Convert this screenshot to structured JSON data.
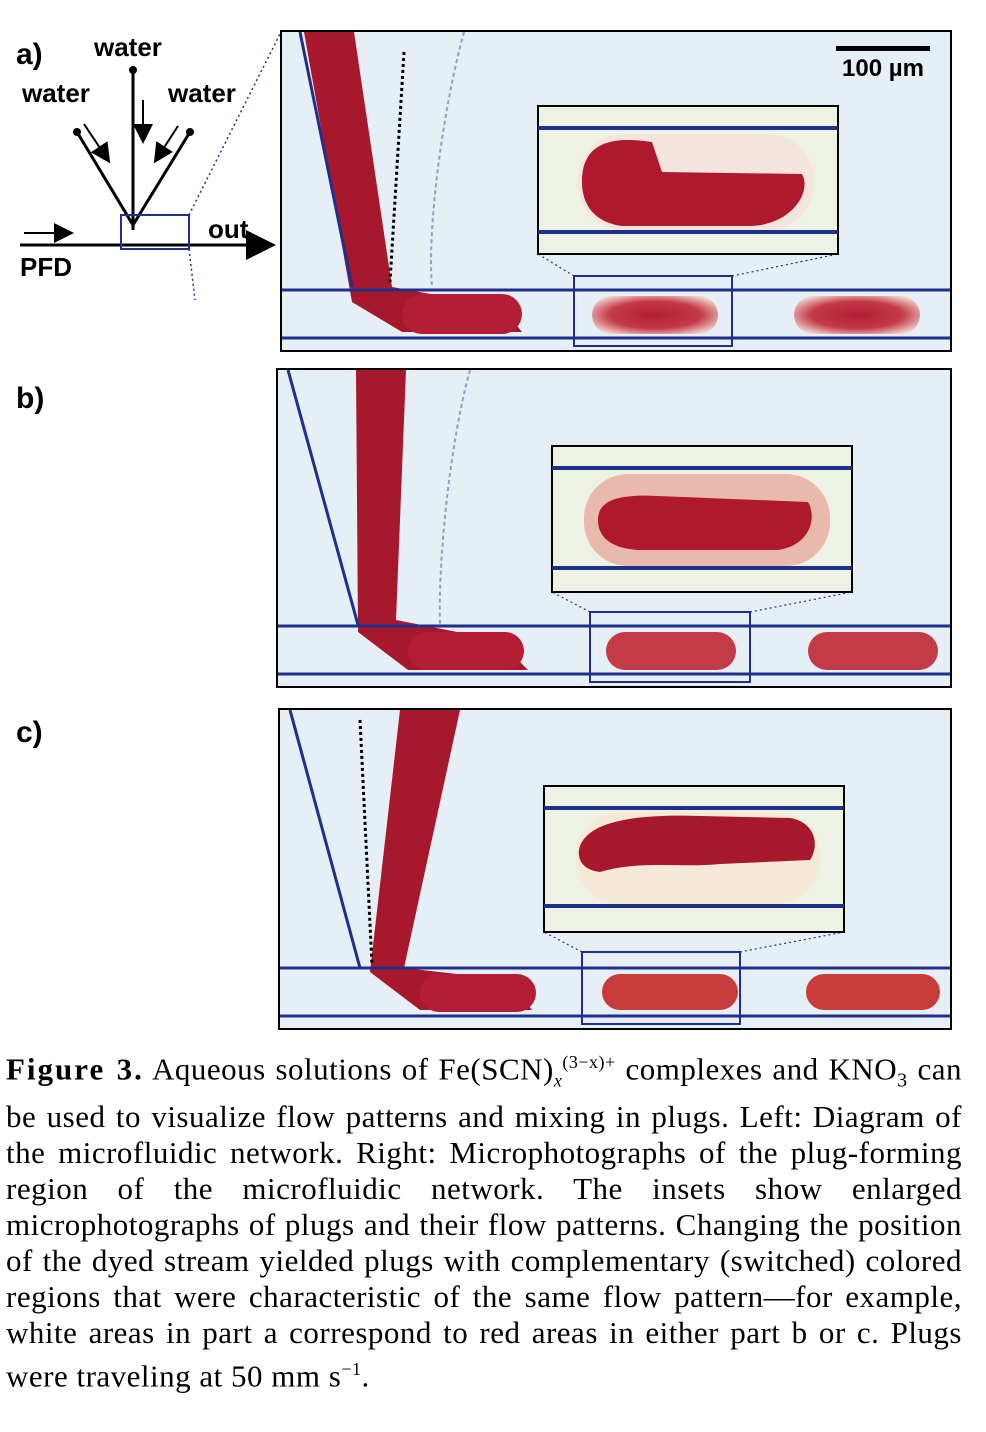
{
  "diagram": {
    "panel_a_label": "a)",
    "panel_b_label": "b)",
    "panel_c_label": "c)",
    "water_top": "water",
    "water_left": "water",
    "water_right": "water",
    "out_label": "out",
    "pfd_label": "PFD"
  },
  "scale_bar": {
    "label": "100 µm"
  },
  "caption": {
    "figure_label": "Figure 3.",
    "text_1": "Aqueous solutions of Fe(SCN)",
    "subscript_x": "x",
    "superscript_charge": "(3−x)+",
    "text_2": "complexes and KNO",
    "subscript_3": "3",
    "text_3": "can be used to visualize flow patterns and mixing in plugs. Left: Diagram of the microfluidic network. Right: Microphotographs of the plug-forming region of the microfluidic network. The insets show enlarged microphotographs of plugs and their flow patterns. Changing the position of the dyed stream yielded plugs with complementary (switched) colored regions that were characteristic of the same flow pattern—for example, white areas in part a correspond to red areas in either part b or c. Plugs were traveling at 50 mm s",
    "superscript_unit": "−1",
    "text_end": "."
  },
  "colors": {
    "dye_red": "#a8182c",
    "channel_blue": "#1f2f8c",
    "background_fluid": "#e6eef6"
  }
}
